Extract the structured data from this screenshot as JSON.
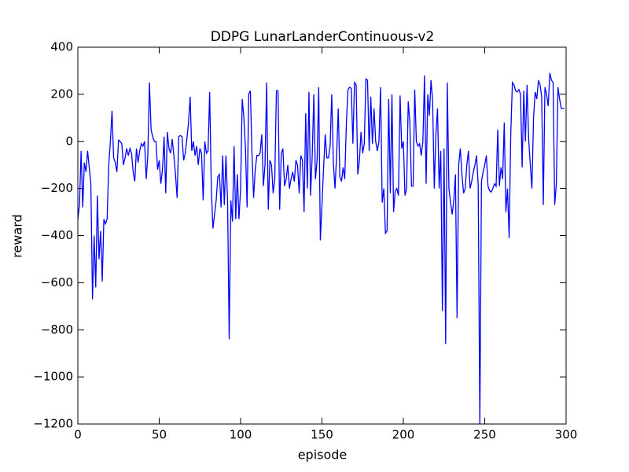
{
  "chart_data": {
    "type": "line",
    "title": "DDPG LunarLanderContinuous-v2",
    "xlabel": "episode",
    "ylabel": "reward",
    "color": "#0000ff",
    "xlim": [
      0,
      300
    ],
    "ylim": [
      -1200,
      400
    ],
    "xticks": [
      0,
      50,
      100,
      150,
      200,
      250,
      300
    ],
    "yticks": [
      {
        "value": -1200,
        "label": "−1200"
      },
      {
        "value": -1000,
        "label": "−1000"
      },
      {
        "value": -800,
        "label": "−800"
      },
      {
        "value": -600,
        "label": "−600"
      },
      {
        "value": -400,
        "label": "−400"
      },
      {
        "value": -200,
        "label": "−200"
      },
      0,
      200,
      400
    ],
    "x": [
      0,
      1,
      2,
      3,
      4,
      5,
      6,
      7,
      8,
      9,
      10,
      11,
      12,
      13,
      14,
      15,
      16,
      17,
      18,
      19,
      20,
      21,
      22,
      23,
      24,
      25,
      26,
      27,
      28,
      29,
      30,
      31,
      32,
      33,
      34,
      35,
      36,
      37,
      38,
      39,
      40,
      41,
      42,
      43,
      44,
      45,
      46,
      47,
      48,
      49,
      50,
      51,
      52,
      53,
      54,
      55,
      56,
      57,
      58,
      59,
      60,
      61,
      62,
      63,
      64,
      65,
      66,
      67,
      68,
      69,
      70,
      71,
      72,
      73,
      74,
      75,
      76,
      77,
      78,
      79,
      80,
      81,
      82,
      83,
      84,
      85,
      86,
      87,
      88,
      89,
      90,
      91,
      92,
      93,
      94,
      95,
      96,
      97,
      98,
      99,
      100,
      101,
      102,
      103,
      104,
      105,
      106,
      107,
      108,
      109,
      110,
      111,
      112,
      113,
      114,
      115,
      116,
      117,
      118,
      119,
      120,
      121,
      122,
      123,
      124,
      125,
      126,
      127,
      128,
      129,
      130,
      131,
      132,
      133,
      134,
      135,
      136,
      137,
      138,
      139,
      140,
      141,
      142,
      143,
      144,
      145,
      146,
      147,
      148,
      149,
      150,
      151,
      152,
      153,
      154,
      155,
      156,
      157,
      158,
      159,
      160,
      161,
      162,
      163,
      164,
      165,
      166,
      167,
      168,
      169,
      170,
      171,
      172,
      173,
      174,
      175,
      176,
      177,
      178,
      179,
      180,
      181,
      182,
      183,
      184,
      185,
      186,
      187,
      188,
      189,
      190,
      191,
      192,
      193,
      194,
      195,
      196,
      197,
      198,
      199,
      200,
      201,
      202,
      203,
      204,
      205,
      206,
      207,
      208,
      209,
      210,
      211,
      212,
      213,
      214,
      215,
      216,
      217,
      218,
      219,
      220,
      221,
      222,
      223,
      224,
      225,
      226,
      227,
      228,
      229,
      230,
      231,
      232,
      233,
      234,
      235,
      236,
      237,
      238,
      239,
      240,
      241,
      242,
      243,
      244,
      245,
      246,
      247,
      248,
      249,
      250,
      251,
      252,
      253,
      254,
      255,
      256,
      257,
      258,
      259,
      260,
      261,
      262,
      263,
      264,
      265,
      266,
      267,
      268,
      269,
      270,
      271,
      272,
      273,
      274,
      275,
      276,
      277,
      278,
      279,
      280,
      281,
      282,
      283,
      284,
      285,
      286,
      287,
      288,
      289,
      290,
      291,
      292,
      293,
      294,
      295,
      296,
      297,
      298,
      299
    ],
    "values": [
      -330,
      -270,
      -40,
      -280,
      -90,
      -130,
      -40,
      -110,
      -180,
      -670,
      -400,
      -620,
      -230,
      -500,
      -380,
      -595,
      -330,
      -350,
      -330,
      -100,
      0,
      130,
      -70,
      -90,
      -130,
      5,
      0,
      -10,
      -100,
      -70,
      -30,
      -60,
      -30,
      -50,
      -130,
      -170,
      -30,
      -90,
      -40,
      -10,
      -20,
      0,
      -160,
      -60,
      250,
      50,
      20,
      0,
      0,
      -120,
      -80,
      -180,
      -120,
      20,
      -220,
      40,
      -30,
      -50,
      10,
      -60,
      -140,
      -240,
      20,
      25,
      20,
      -80,
      -50,
      10,
      80,
      190,
      -40,
      0,
      -60,
      -20,
      -100,
      -30,
      -50,
      -250,
      0,
      -50,
      -40,
      210,
      -200,
      -370,
      -310,
      -250,
      -150,
      -140,
      -280,
      -60,
      -270,
      -60,
      -250,
      -840,
      -250,
      -340,
      -20,
      -330,
      -140,
      -330,
      -200,
      180,
      100,
      -30,
      -280,
      200,
      215,
      -50,
      -240,
      -120,
      -60,
      -60,
      -50,
      30,
      -190,
      -100,
      250,
      -290,
      -80,
      -100,
      -220,
      -160,
      215,
      215,
      -290,
      -50,
      -30,
      -190,
      -160,
      -100,
      -200,
      -160,
      -130,
      -170,
      -80,
      -100,
      -220,
      -60,
      -80,
      -300,
      120,
      -200,
      210,
      -230,
      -60,
      200,
      -160,
      -80,
      230,
      -420,
      -270,
      -110,
      30,
      -70,
      -70,
      -20,
      200,
      -90,
      -200,
      -60,
      140,
      -150,
      -170,
      -110,
      -160,
      80,
      220,
      230,
      225,
      -10,
      250,
      240,
      -140,
      -80,
      40,
      -50,
      -10,
      265,
      260,
      -40,
      190,
      -10,
      140,
      0,
      -40,
      0,
      230,
      -260,
      -200,
      -390,
      -380,
      180,
      -220,
      200,
      -300,
      -210,
      -200,
      -230,
      195,
      -30,
      0,
      -230,
      -200,
      170,
      80,
      -190,
      -190,
      220,
      0,
      -20,
      -10,
      -60,
      0,
      280,
      -180,
      200,
      110,
      260,
      170,
      -200,
      30,
      140,
      -200,
      -40,
      -720,
      -30,
      -860,
      250,
      -200,
      -260,
      -310,
      -250,
      -140,
      -750,
      -100,
      -30,
      -140,
      -220,
      -200,
      -100,
      -40,
      -200,
      -170,
      -130,
      -100,
      -60,
      -190,
      -1200,
      -170,
      -130,
      -100,
      -60,
      -190,
      -210,
      -215,
      -200,
      -180,
      -190,
      50,
      -190,
      -110,
      -160,
      80,
      -300,
      -200,
      -410,
      30,
      250,
      240,
      215,
      210,
      220,
      200,
      -110,
      215,
      0,
      240,
      10,
      -100,
      -200,
      100,
      210,
      180,
      260,
      240,
      190,
      -270,
      230,
      200,
      150,
      290,
      260,
      250,
      -270,
      -180,
      230,
      180,
      140,
      140,
      140
    ]
  }
}
